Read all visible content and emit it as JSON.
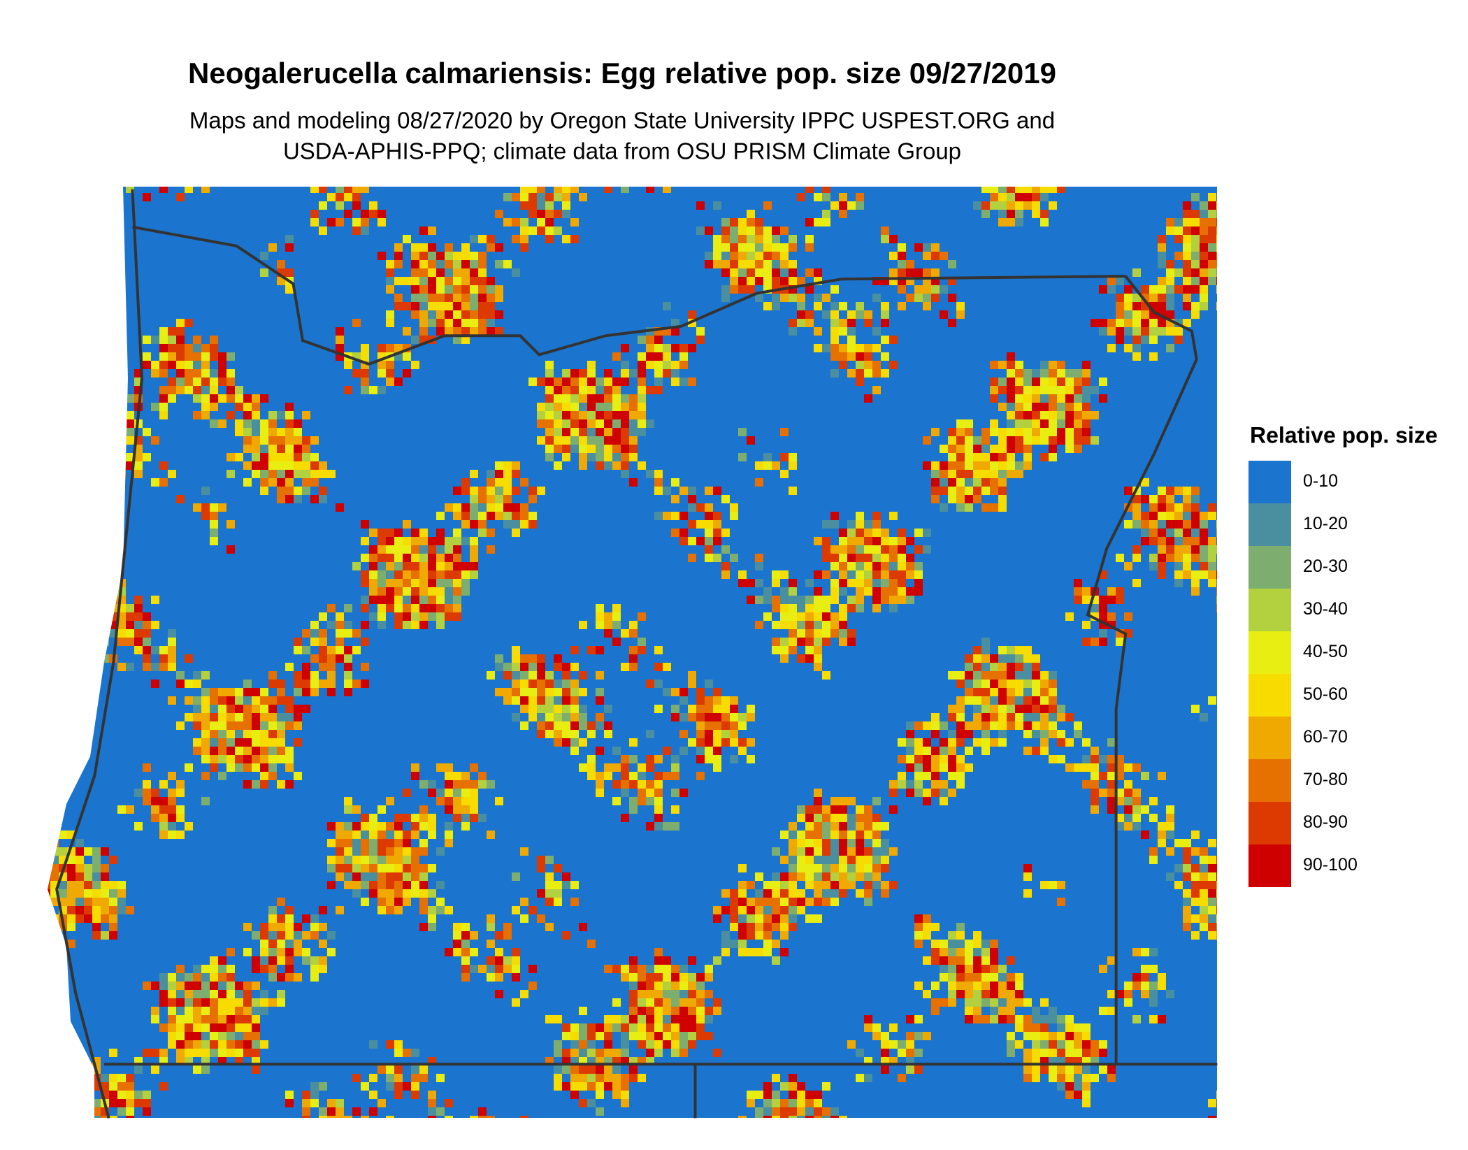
{
  "header": {
    "title": "Neogalerucella calmariensis: Egg relative pop. size 09/27/2019",
    "subtitle": [
      "Maps and modeling 08/27/2020 by Oregon State University IPPC USPEST.ORG and",
      "USDA-APHIS-PPQ; climate data from OSU PRISM Climate Group"
    ]
  },
  "legend": {
    "title": "Relative pop. size",
    "items": [
      {
        "label": "0-10",
        "color": "#1b74cd"
      },
      {
        "label": "10-20",
        "color": "#4a8fa0"
      },
      {
        "label": "20-30",
        "color": "#7dae6f"
      },
      {
        "label": "30-40",
        "color": "#b3d03f"
      },
      {
        "label": "40-50",
        "color": "#e8ee12"
      },
      {
        "label": "50-60",
        "color": "#f7dc00"
      },
      {
        "label": "60-70",
        "color": "#f0a900"
      },
      {
        "label": "70-80",
        "color": "#e67000"
      },
      {
        "label": "80-90",
        "color": "#dc3a00"
      },
      {
        "label": "90-100",
        "color": "#cf0000"
      }
    ]
  }
}
